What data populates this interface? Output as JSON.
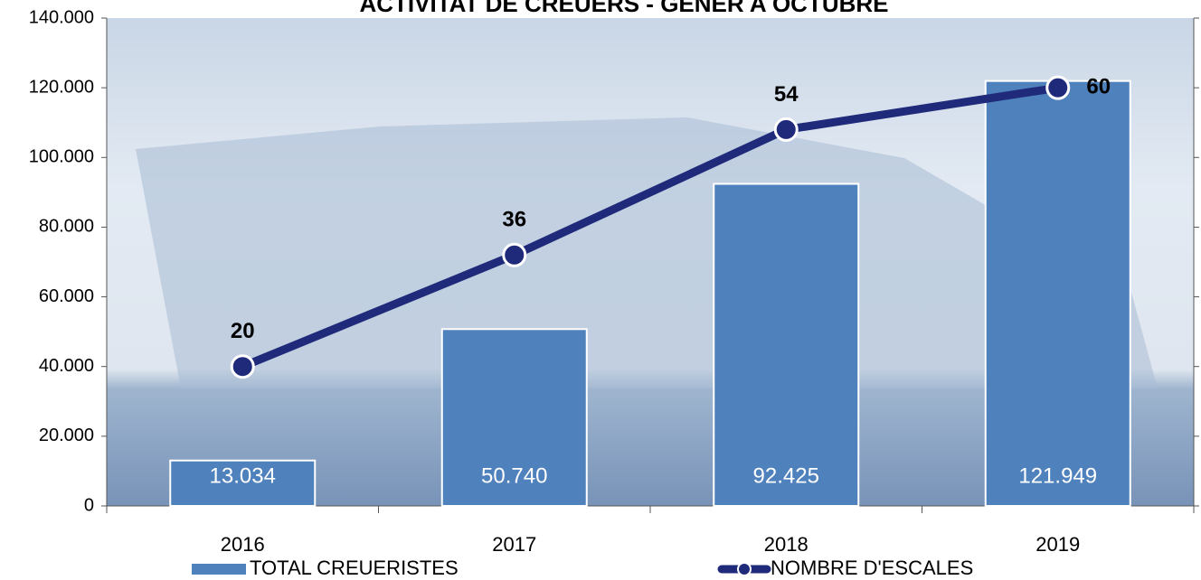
{
  "chart_data": {
    "type": "bar_line",
    "title": "ACTIVITAT DE CREUERS - GENER A OCTUBRE",
    "categories": [
      "2016",
      "2017",
      "2018",
      "2019"
    ],
    "series": [
      {
        "name": "TOTAL CREUERISTES",
        "type": "bar",
        "color": "#4f81bd",
        "values": [
          13034,
          50740,
          92425,
          121949
        ],
        "value_labels": [
          "13.034",
          "50.740",
          "92.425",
          "121.949"
        ]
      },
      {
        "name": "NOMBRE D'ESCALES",
        "type": "line",
        "axis": "y2",
        "color": "#1f2a7a",
        "values": [
          20,
          36,
          54,
          60
        ]
      }
    ],
    "ylim": [
      0,
      140000
    ],
    "yticks": [
      0,
      {
        "value": 20000,
        "label": "20.000"
      },
      {
        "value": 40000,
        "label": "40.000"
      },
      {
        "value": 60000,
        "label": "60.000"
      },
      {
        "value": 80000,
        "label": "80.000"
      },
      {
        "value": 100000,
        "label": "100.000"
      },
      {
        "value": 120000,
        "label": "120.000"
      },
      {
        "value": 140000,
        "label": "140.000"
      }
    ],
    "y2lim": [
      0,
      70
    ],
    "y2ticks": [
      0,
      10,
      20,
      30,
      40,
      50,
      60,
      70
    ]
  }
}
